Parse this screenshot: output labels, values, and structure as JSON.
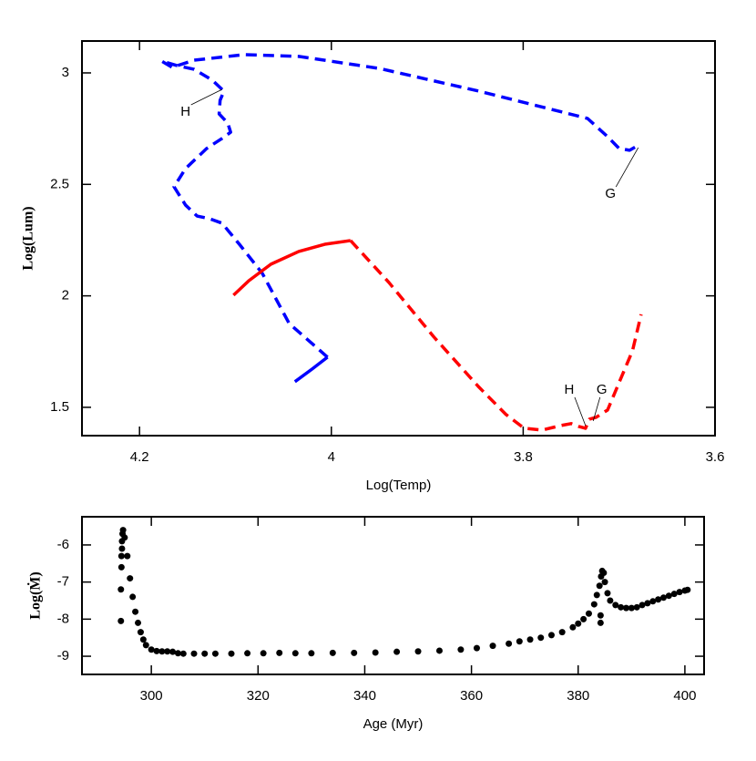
{
  "chart_data": [
    {
      "type": "line",
      "x_label": "Log(Temp)",
      "y_label": "Log(Lum)",
      "xlim": [
        4.26,
        3.6
      ],
      "ylim": [
        1.373,
        3.143
      ],
      "xticks": [
        4.2,
        4,
        3.8,
        3.6
      ],
      "yticks": [
        1.5,
        2,
        2.5,
        3
      ],
      "series": [
        {
          "color": "#0000ff",
          "linestyle": "solid",
          "x": [
            4.038,
            4.02,
            4.004
          ],
          "values": [
            1.615,
            1.672,
            1.725
          ]
        },
        {
          "color": "#0000ff",
          "linestyle": "dashed",
          "x": [
            4.004,
            4.044,
            4.072,
            4.096,
            4.114,
            4.127,
            4.14,
            4.152,
            4.164,
            4.152,
            4.13,
            4.114,
            4.105,
            4.108,
            4.117,
            4.116,
            4.112,
            4.124,
            4.143,
            4.161,
            4.177,
            4.166,
            4.143,
            4.091,
            4.034,
            3.95,
            3.846,
            3.733,
            3.712,
            3.7,
            3.689,
            3.681
          ],
          "values": [
            1.725,
            1.876,
            2.101,
            2.232,
            2.326,
            2.346,
            2.358,
            2.407,
            2.489,
            2.571,
            2.661,
            2.706,
            2.734,
            2.775,
            2.816,
            2.877,
            2.918,
            2.967,
            3.016,
            3.033,
            3.053,
            3.025,
            3.057,
            3.082,
            3.074,
            3.02,
            2.918,
            2.796,
            2.714,
            2.661,
            2.653,
            2.673
          ]
        },
        {
          "color": "#ff0000",
          "linestyle": "solid",
          "x": [
            4.102,
            4.086,
            4.063,
            4.034,
            4.006,
            3.98
          ],
          "values": [
            2.003,
            2.068,
            2.142,
            2.199,
            2.232,
            2.248
          ]
        },
        {
          "color": "#ff0000",
          "linestyle": "dashed",
          "x": [
            3.98,
            3.94,
            3.893,
            3.846,
            3.818,
            3.799,
            3.78,
            3.761,
            3.75,
            3.742,
            3.735,
            3.731,
            3.724,
            3.712,
            3.7,
            3.686,
            3.677
          ],
          "values": [
            2.248,
            2.06,
            1.815,
            1.59,
            1.468,
            1.406,
            1.398,
            1.418,
            1.427,
            1.414,
            1.406,
            1.447,
            1.455,
            1.488,
            1.611,
            1.754,
            1.917
          ]
        }
      ],
      "annotations": [
        {
          "text": "H",
          "x": 4.114,
          "y": 2.926,
          "xtext": 4.152,
          "ytext": 2.824
        },
        {
          "text": "G",
          "x": 3.68,
          "y": 2.665,
          "xtext": 3.709,
          "ytext": 2.456
        },
        {
          "text": "H",
          "x": 3.735,
          "y": 1.418,
          "xtext": 3.752,
          "ytext": 1.578
        },
        {
          "text": "G",
          "x": 3.727,
          "y": 1.439,
          "xtext": 3.718,
          "ytext": 1.578
        }
      ]
    },
    {
      "type": "scatter",
      "x_label": "Age (Myr)",
      "y_label": "Log(Ṁ)",
      "xlim": [
        287,
        403.6
      ],
      "ylim": [
        -9.49,
        -5.24
      ],
      "xticks": [
        300,
        320,
        340,
        360,
        380,
        400
      ],
      "yticks": [
        -6,
        -7,
        -8,
        -9
      ],
      "color": "#000000",
      "x": [
        294.3,
        294.3,
        294.4,
        294.4,
        294.5,
        294.5,
        294.6,
        294.7,
        295,
        295.5,
        296,
        296.5,
        297,
        297.5,
        298,
        298.5,
        299,
        300,
        301,
        302,
        303,
        304,
        305,
        306,
        308,
        310,
        312,
        315,
        318,
        321,
        324,
        327,
        330,
        334,
        338,
        342,
        346,
        350,
        354,
        358,
        361,
        364,
        367,
        369,
        371,
        373,
        375,
        377,
        379,
        380,
        381,
        382,
        383,
        383.5,
        384,
        384.2,
        384.2,
        384.3,
        384.5,
        384.8,
        385,
        385.5,
        386,
        387,
        388,
        389,
        390,
        391,
        392,
        393,
        394,
        395,
        396,
        397,
        398,
        399,
        400,
        400.5
      ],
      "values": [
        -8.05,
        -7.2,
        -6.6,
        -6.3,
        -6.1,
        -5.9,
        -5.7,
        -5.6,
        -5.8,
        -6.3,
        -6.9,
        -7.4,
        -7.8,
        -8.1,
        -8.35,
        -8.55,
        -8.7,
        -8.82,
        -8.86,
        -8.87,
        -8.87,
        -8.88,
        -8.92,
        -8.93,
        -8.93,
        -8.93,
        -8.93,
        -8.93,
        -8.92,
        -8.92,
        -8.91,
        -8.92,
        -8.92,
        -8.91,
        -8.91,
        -8.9,
        -8.88,
        -8.87,
        -8.85,
        -8.82,
        -8.78,
        -8.72,
        -8.66,
        -8.6,
        -8.55,
        -8.5,
        -8.43,
        -8.35,
        -8.22,
        -8.12,
        -8.0,
        -7.85,
        -7.6,
        -7.35,
        -7.1,
        -7.9,
        -8.1,
        -6.85,
        -6.7,
        -6.75,
        -7.0,
        -7.3,
        -7.5,
        -7.62,
        -7.68,
        -7.7,
        -7.7,
        -7.68,
        -7.62,
        -7.57,
        -7.52,
        -7.47,
        -7.42,
        -7.37,
        -7.32,
        -7.27,
        -7.23,
        -7.21
      ]
    }
  ]
}
